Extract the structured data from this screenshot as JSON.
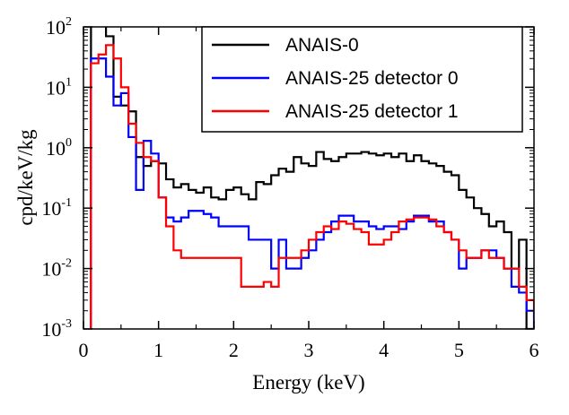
{
  "chart_data": {
    "type": "line",
    "xlabel": "Energy (keV)",
    "ylabel": "cpd/keV/kg",
    "xlim": [
      0,
      6
    ],
    "ylim": [
      0.001,
      100
    ],
    "yscale": "log",
    "grid": false,
    "legend_position": "top-right",
    "x_ticks": [
      "0",
      "1",
      "2",
      "3",
      "4",
      "5",
      "6"
    ],
    "y_ticks": [
      {
        "base": "10",
        "exp": "-3"
      },
      {
        "base": "10",
        "exp": "-2"
      },
      {
        "base": "10",
        "exp": "-1"
      },
      {
        "base": "10",
        "exp": "0"
      },
      {
        "base": "10",
        "exp": "1"
      },
      {
        "base": "10",
        "exp": "2"
      }
    ],
    "series": [
      {
        "name": "ANAIS-0",
        "color": "#000000",
        "bin_width": 0.1,
        "x_start": 0.1,
        "values": [
          130,
          130,
          70,
          7,
          5,
          4,
          0.7,
          0.5,
          0.6,
          0.55,
          0.3,
          0.22,
          0.25,
          0.2,
          0.18,
          0.22,
          0.15,
          0.14,
          0.2,
          0.22,
          0.17,
          0.14,
          0.27,
          0.25,
          0.35,
          0.45,
          0.4,
          0.7,
          0.55,
          0.5,
          0.85,
          0.65,
          0.6,
          0.7,
          0.8,
          0.8,
          0.85,
          0.8,
          0.75,
          0.8,
          0.7,
          0.8,
          0.6,
          0.75,
          0.6,
          0.55,
          0.5,
          0.4,
          0.35,
          0.2,
          0.15,
          0.1,
          0.08,
          0.05,
          0.06,
          0.04,
          0.01,
          0.03,
          0.001,
          0.001,
          0.001,
          0.001,
          0.001,
          0.001,
          0.001,
          0.03,
          0.02
        ]
      },
      {
        "name": "ANAIS-25 detector 0",
        "color": "#0000ff",
        "bin_width": 0.1,
        "x_start": 0.1,
        "values": [
          30,
          30,
          15,
          5,
          8,
          1.5,
          0.2,
          1.3,
          0.8,
          0.15,
          0.07,
          0.06,
          0.07,
          0.09,
          0.09,
          0.08,
          0.07,
          0.05,
          0.05,
          0.05,
          0.05,
          0.03,
          0.03,
          0.03,
          0.01,
          0.03,
          0.01,
          0.01,
          0.015,
          0.02,
          0.03,
          0.04,
          0.06,
          0.075,
          0.075,
          0.06,
          0.06,
          0.05,
          0.045,
          0.05,
          0.05,
          0.045,
          0.06,
          0.075,
          0.075,
          0.06,
          0.06,
          0.04,
          0.03,
          0.01,
          0.015,
          0.015,
          0.02,
          0.02,
          0.015,
          0.01,
          0.005,
          0.004,
          0.002,
          0.001
        ]
      },
      {
        "name": "ANAIS-25 detector 1",
        "color": "#ff0000",
        "bin_width": 0.1,
        "x_start": 0.1,
        "values": [
          25,
          35,
          50,
          30,
          10,
          2.5,
          1.2,
          0.7,
          0.6,
          0.15,
          0.05,
          0.02,
          0.015,
          0.015,
          0.015,
          0.015,
          0.015,
          0.015,
          0.015,
          0.015,
          0.005,
          0.005,
          0.005,
          0.006,
          0.005,
          0.015,
          0.015,
          0.015,
          0.02,
          0.03,
          0.04,
          0.05,
          0.045,
          0.06,
          0.055,
          0.045,
          0.04,
          0.025,
          0.025,
          0.03,
          0.04,
          0.06,
          0.065,
          0.07,
          0.07,
          0.065,
          0.05,
          0.04,
          0.03,
          0.02,
          0.015,
          0.015,
          0.02,
          0.015,
          0.015,
          0.01,
          0.01,
          0.005,
          0.003,
          0.002,
          0.015,
          0.015
        ]
      }
    ]
  }
}
